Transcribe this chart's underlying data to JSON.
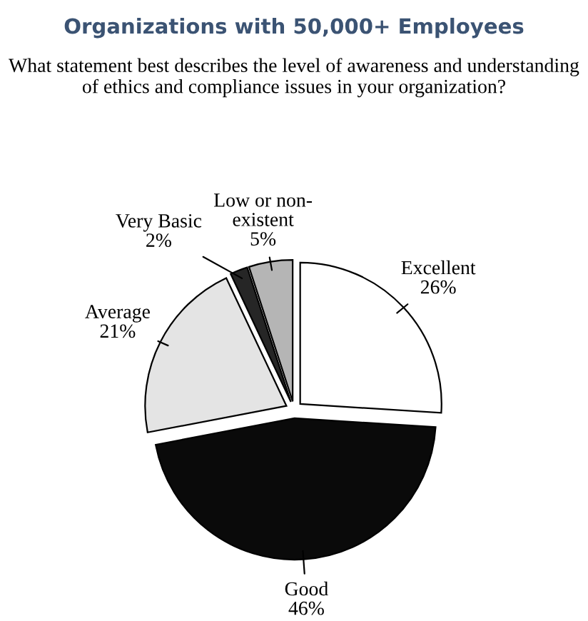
{
  "chart_data": {
    "type": "pie",
    "title": "Organizations with 50,000+ Employees",
    "subtitle": "What statement best describes the level of awareness and understanding of ethics and compliance issues in your organization?",
    "categories": [
      "Excellent",
      "Good",
      "Average",
      "Very Basic",
      "Low or non-\nexistent"
    ],
    "values": [
      26,
      46,
      21,
      2,
      5
    ],
    "colors": [
      "#ffffff",
      "#0a0a0a",
      "#e4e4e4",
      "#262626",
      "#b5b5b5"
    ],
    "value_labels": [
      "26%",
      "46%",
      "21%",
      "2%",
      "5%"
    ]
  }
}
